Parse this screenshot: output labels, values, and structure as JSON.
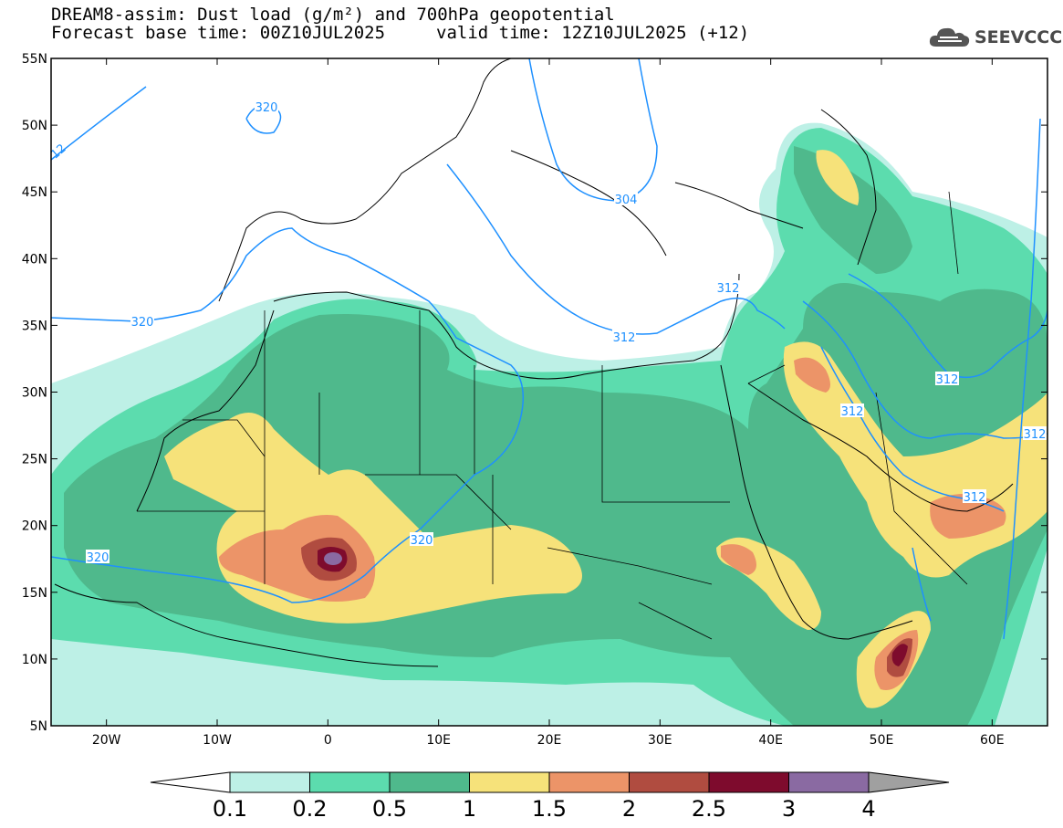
{
  "header": {
    "title": "DREAM8-assim: Dust load (g/m²) and 700hPa geopotential",
    "base_time": "Forecast base time: 00Z10JUL2025",
    "valid_time": "valid time: 12Z10JUL2025 (+12)"
  },
  "logo": {
    "text": "SEEVCCC",
    "icon": "cloud-icon"
  },
  "map": {
    "lon_range": [
      -25,
      65
    ],
    "lat_range": [
      5,
      55
    ],
    "lat_ticks": [
      "55N",
      "50N",
      "45N",
      "40N",
      "35N",
      "30N",
      "25N",
      "20N",
      "15N",
      "10N",
      "5N"
    ],
    "lon_ticks": [
      "20W",
      "10W",
      "0",
      "10E",
      "20E",
      "30E",
      "40E",
      "50E",
      "60E"
    ],
    "contour_labels": [
      "320",
      "312",
      "304",
      "312",
      "320",
      "320",
      "312",
      "312",
      "312",
      "312",
      "12"
    ],
    "colors": {
      "ocean_land": "#ffffff",
      "border": "#000000",
      "contour": "#1e90ff"
    }
  },
  "colorbar": {
    "labels": [
      "0.1",
      "0.2",
      "0.5",
      "1",
      "1.5",
      "2",
      "2.5",
      "3",
      "4"
    ],
    "colors": [
      "#bdf0e6",
      "#5cdcae",
      "#4fb98c",
      "#f6e27a",
      "#ec9468",
      "#b04c40",
      "#7e0b2d",
      "#8a6aa2",
      "#a0a0a0"
    ]
  }
}
